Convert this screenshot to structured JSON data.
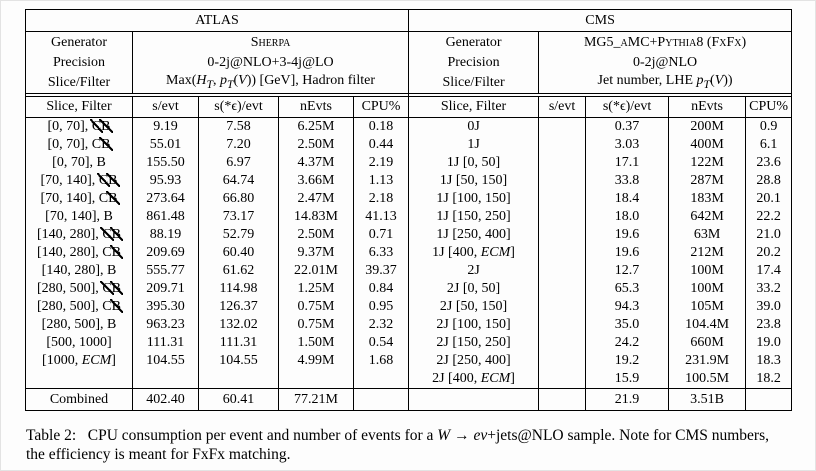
{
  "table": {
    "atlas": {
      "title": "ATLAS",
      "meta_labels": [
        "Generator",
        "Precision",
        "Slice/Filter"
      ],
      "generator": "Sherpa",
      "precision": "0-2j@NLO+3-4j@LO",
      "slice_filter_html": "Max(<i>H<sub>T</sub></i>, <i>p<sub>T</sub></i>(<i>V</i>)) [GeV], Hadron filter",
      "columns": [
        "Slice, Filter",
        "s/evt",
        "s(*ϵ)/evt",
        "nEvts",
        "CPU%"
      ]
    },
    "cms": {
      "title": "CMS",
      "meta_labels": [
        "Generator",
        "Precision",
        "Slice/Filter"
      ],
      "generator": "MG5_aMC+Pythia8 (FxFx)",
      "precision": "0-2j@NLO",
      "slice_filter_html": "Jet number, LHE <i>p<sub>T</sub></i>(<i>V</i>))",
      "columns": [
        "Slice, Filter",
        "s/evt",
        "s(*ϵ)/evt",
        "nEvts",
        "CPU%"
      ]
    },
    "rows": [
      {
        "atlas": [
          "[0, 70], <span class='x'>C</span><span class='x'>B</span>",
          "9.19",
          "7.58",
          "6.25M",
          "0.18"
        ],
        "cms": [
          "0J",
          "",
          "0.37",
          "200M",
          "0.9"
        ]
      },
      {
        "atlas": [
          "[0, 70], C<span class='x'>B</span>",
          "55.01",
          "7.20",
          "2.50M",
          "0.44"
        ],
        "cms": [
          "1J",
          "",
          "3.03",
          "400M",
          "6.1"
        ]
      },
      {
        "atlas": [
          "[0, 70], B",
          "155.50",
          "6.97",
          "4.37M",
          "2.19"
        ],
        "cms": [
          "1J [0, 50]",
          "",
          "17.1",
          "122M",
          "23.6"
        ]
      },
      {
        "atlas": [
          "[70, 140], <span class='x'>C</span><span class='x'>B</span>",
          "95.93",
          "64.74",
          "3.66M",
          "1.13"
        ],
        "cms": [
          "1J [50, 150]",
          "",
          "33.8",
          "287M",
          "28.8"
        ]
      },
      {
        "atlas": [
          "[70, 140], C<span class='x'>B</span>",
          "273.64",
          "66.80",
          "2.47M",
          "2.18"
        ],
        "cms": [
          "1J [100, 150]",
          "",
          "18.4",
          "183M",
          "20.1"
        ]
      },
      {
        "atlas": [
          "[70, 140], B",
          "861.48",
          "73.17",
          "14.83M",
          "41.13"
        ],
        "cms": [
          "1J [150, 250]",
          "",
          "18.0",
          "642M",
          "22.2"
        ]
      },
      {
        "atlas": [
          "[140, 280], <span class='x'>C</span><span class='x'>B</span>",
          "88.19",
          "52.79",
          "2.50M",
          "0.71"
        ],
        "cms": [
          "1J [250, 400]",
          "",
          "19.6",
          "63M",
          "21.0"
        ]
      },
      {
        "atlas": [
          "[140, 280], C<span class='x'>B</span>",
          "209.69",
          "60.40",
          "9.37M",
          "6.33"
        ],
        "cms": [
          "1J [400, <i>ECM</i>]",
          "",
          "19.6",
          "212M",
          "20.2"
        ]
      },
      {
        "atlas": [
          "[140, 280], B",
          "555.77",
          "61.62",
          "22.01M",
          "39.37"
        ],
        "cms": [
          "2J",
          "",
          "12.7",
          "100M",
          "17.4"
        ]
      },
      {
        "atlas": [
          "[280, 500], <span class='x'>C</span><span class='x'>B</span>",
          "209.71",
          "114.98",
          "1.25M",
          "0.84"
        ],
        "cms": [
          "2J [0, 50]",
          "",
          "65.3",
          "100M",
          "33.2"
        ]
      },
      {
        "atlas": [
          "[280, 500], C<span class='x'>B</span>",
          "395.30",
          "126.37",
          "0.75M",
          "0.95"
        ],
        "cms": [
          "2J [50, 150]",
          "",
          "94.3",
          "105M",
          "39.0"
        ]
      },
      {
        "atlas": [
          "[280, 500], B",
          "963.23",
          "132.02",
          "0.75M",
          "2.32"
        ],
        "cms": [
          "2J [100, 150]",
          "",
          "35.0",
          "104.4M",
          "23.8"
        ]
      },
      {
        "atlas": [
          "[500, 1000]",
          "111.31",
          "111.31",
          "1.50M",
          "0.54"
        ],
        "cms": [
          "2J [150, 250]",
          "",
          "24.2",
          "660M",
          "19.0"
        ]
      },
      {
        "atlas": [
          "[1000, <i>ECM</i>]",
          "104.55",
          "104.55",
          "4.99M",
          "1.68"
        ],
        "cms": [
          "2J [250, 400]",
          "",
          "19.2",
          "231.9M",
          "18.3"
        ]
      },
      {
        "atlas": [
          "",
          "",
          "",
          "",
          ""
        ],
        "cms": [
          "2J [400, <i>ECM</i>]",
          "",
          "15.9",
          "100.5M",
          "18.2"
        ]
      }
    ],
    "combined": {
      "atlas": [
        "Combined",
        "402.40",
        "60.41",
        "77.21M",
        ""
      ],
      "cms": [
        "",
        "",
        "21.9",
        "3.51B",
        ""
      ]
    }
  },
  "caption_html": "Table 2:&nbsp;&nbsp; CPU consumption per event and number of events for a <i>W</i> → <i>eν</i>+jets@NLO sample. Note for CMS numbers, the efficiency is meant for FxFx matching."
}
